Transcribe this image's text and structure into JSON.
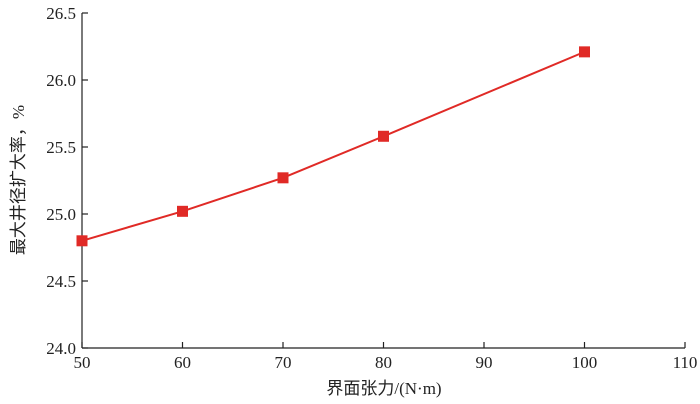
{
  "chart_data": {
    "type": "line",
    "title": "",
    "xlabel": "界面张力/(N·m)",
    "ylabel": "最大井径扩大率，%",
    "xlim": [
      50,
      110
    ],
    "ylim": [
      24.0,
      26.5
    ],
    "x_ticks": [
      "50",
      "60",
      "70",
      "80",
      "90",
      "100",
      "110"
    ],
    "y_ticks": [
      "24.0",
      "24.5",
      "25.0",
      "25.5",
      "26.0",
      "26.5"
    ],
    "grid": false,
    "marker": "square",
    "series": [
      {
        "color": "#e02a26",
        "x": [
          50,
          60,
          70,
          80,
          100
        ],
        "y": [
          24.8,
          25.02,
          25.27,
          25.58,
          26.21
        ]
      }
    ]
  }
}
